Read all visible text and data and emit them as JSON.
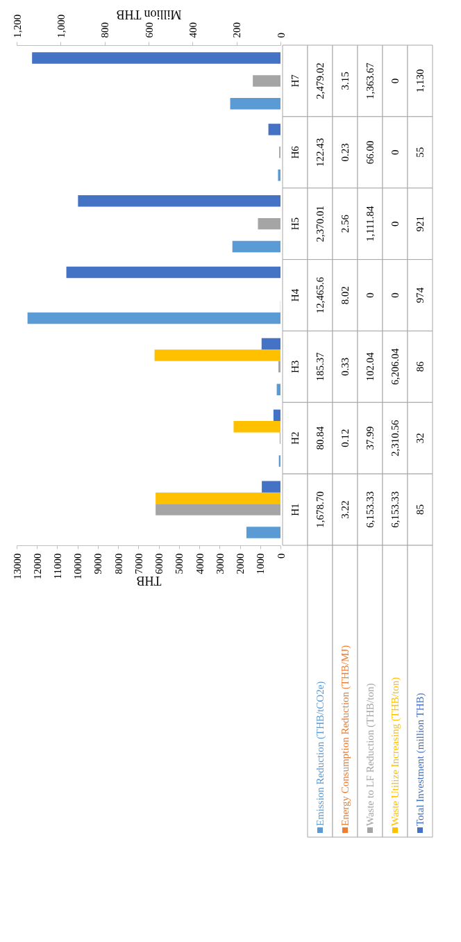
{
  "chart_data": {
    "type": "bar",
    "orientation": "horizontal",
    "categories": [
      "H7",
      "H6",
      "H5",
      "H4",
      "H3",
      "H2",
      "H1"
    ],
    "xlabel": "THB",
    "x2label": "Million THB",
    "xlim": [
      13000,
      0
    ],
    "xticks": [
      0,
      1000,
      2000,
      3000,
      4000,
      5000,
      6000,
      7000,
      8000,
      9000,
      10000,
      11000,
      12000,
      13000
    ],
    "x2lim": [
      1200,
      0
    ],
    "x2ticks": [
      0,
      200,
      400,
      600,
      800,
      {
        "value": 1000,
        "label": "1,000"
      },
      {
        "value": 1200,
        "label": "1,200"
      }
    ],
    "legend": "bottom",
    "series": [
      {
        "name": "Emission Reduction (THB/tCO2e)",
        "color": "#5b9bd5",
        "values": [
          2479.02,
          122.43,
          2370.01,
          12465.6,
          185.37,
          80.84,
          1678.7
        ],
        "value_labels": [
          "2,479.02",
          "122.43",
          "2,370.01",
          "12,465.6",
          "185.37",
          "80.84",
          "1,678.70"
        ]
      },
      {
        "name": "Energy Consumption Reduction (THB/MJ)",
        "color": "#ed7d31",
        "values": [
          3.15,
          0.23,
          2.56,
          8.02,
          0.33,
          0.12,
          3.22
        ],
        "value_labels": [
          "3.15",
          "0.23",
          "2.56",
          "8.02",
          "0.33",
          "0.12",
          "3.22"
        ]
      },
      {
        "name": "Waste to LF Reduction (THB/ton)",
        "color": "#a5a5a5",
        "values": [
          1363.67,
          66.0,
          1111.84,
          0,
          102.04,
          37.99,
          6153.33
        ],
        "value_labels": [
          "1,363.67",
          "66.00",
          "1,111.84",
          "0",
          "102.04",
          "37.99",
          "6,153.33"
        ]
      },
      {
        "name": "Waste Utilize Increasing (THB/ton)",
        "color": "#ffc000",
        "values": [
          0,
          0,
          0,
          0,
          6206.04,
          2310.56,
          6153.33
        ],
        "value_labels": [
          "0",
          "0",
          "0",
          "0",
          "6,206.04",
          "2,310.56",
          "6,153.33"
        ]
      },
      {
        "name": "Total Investment (million THB)",
        "color": "#4472c4",
        "axis": "x2",
        "values": [
          1130,
          55,
          921,
          974,
          86,
          32,
          85
        ],
        "value_labels": [
          "1,130",
          "55",
          "921",
          "974",
          "86",
          "32",
          "85"
        ]
      }
    ]
  }
}
